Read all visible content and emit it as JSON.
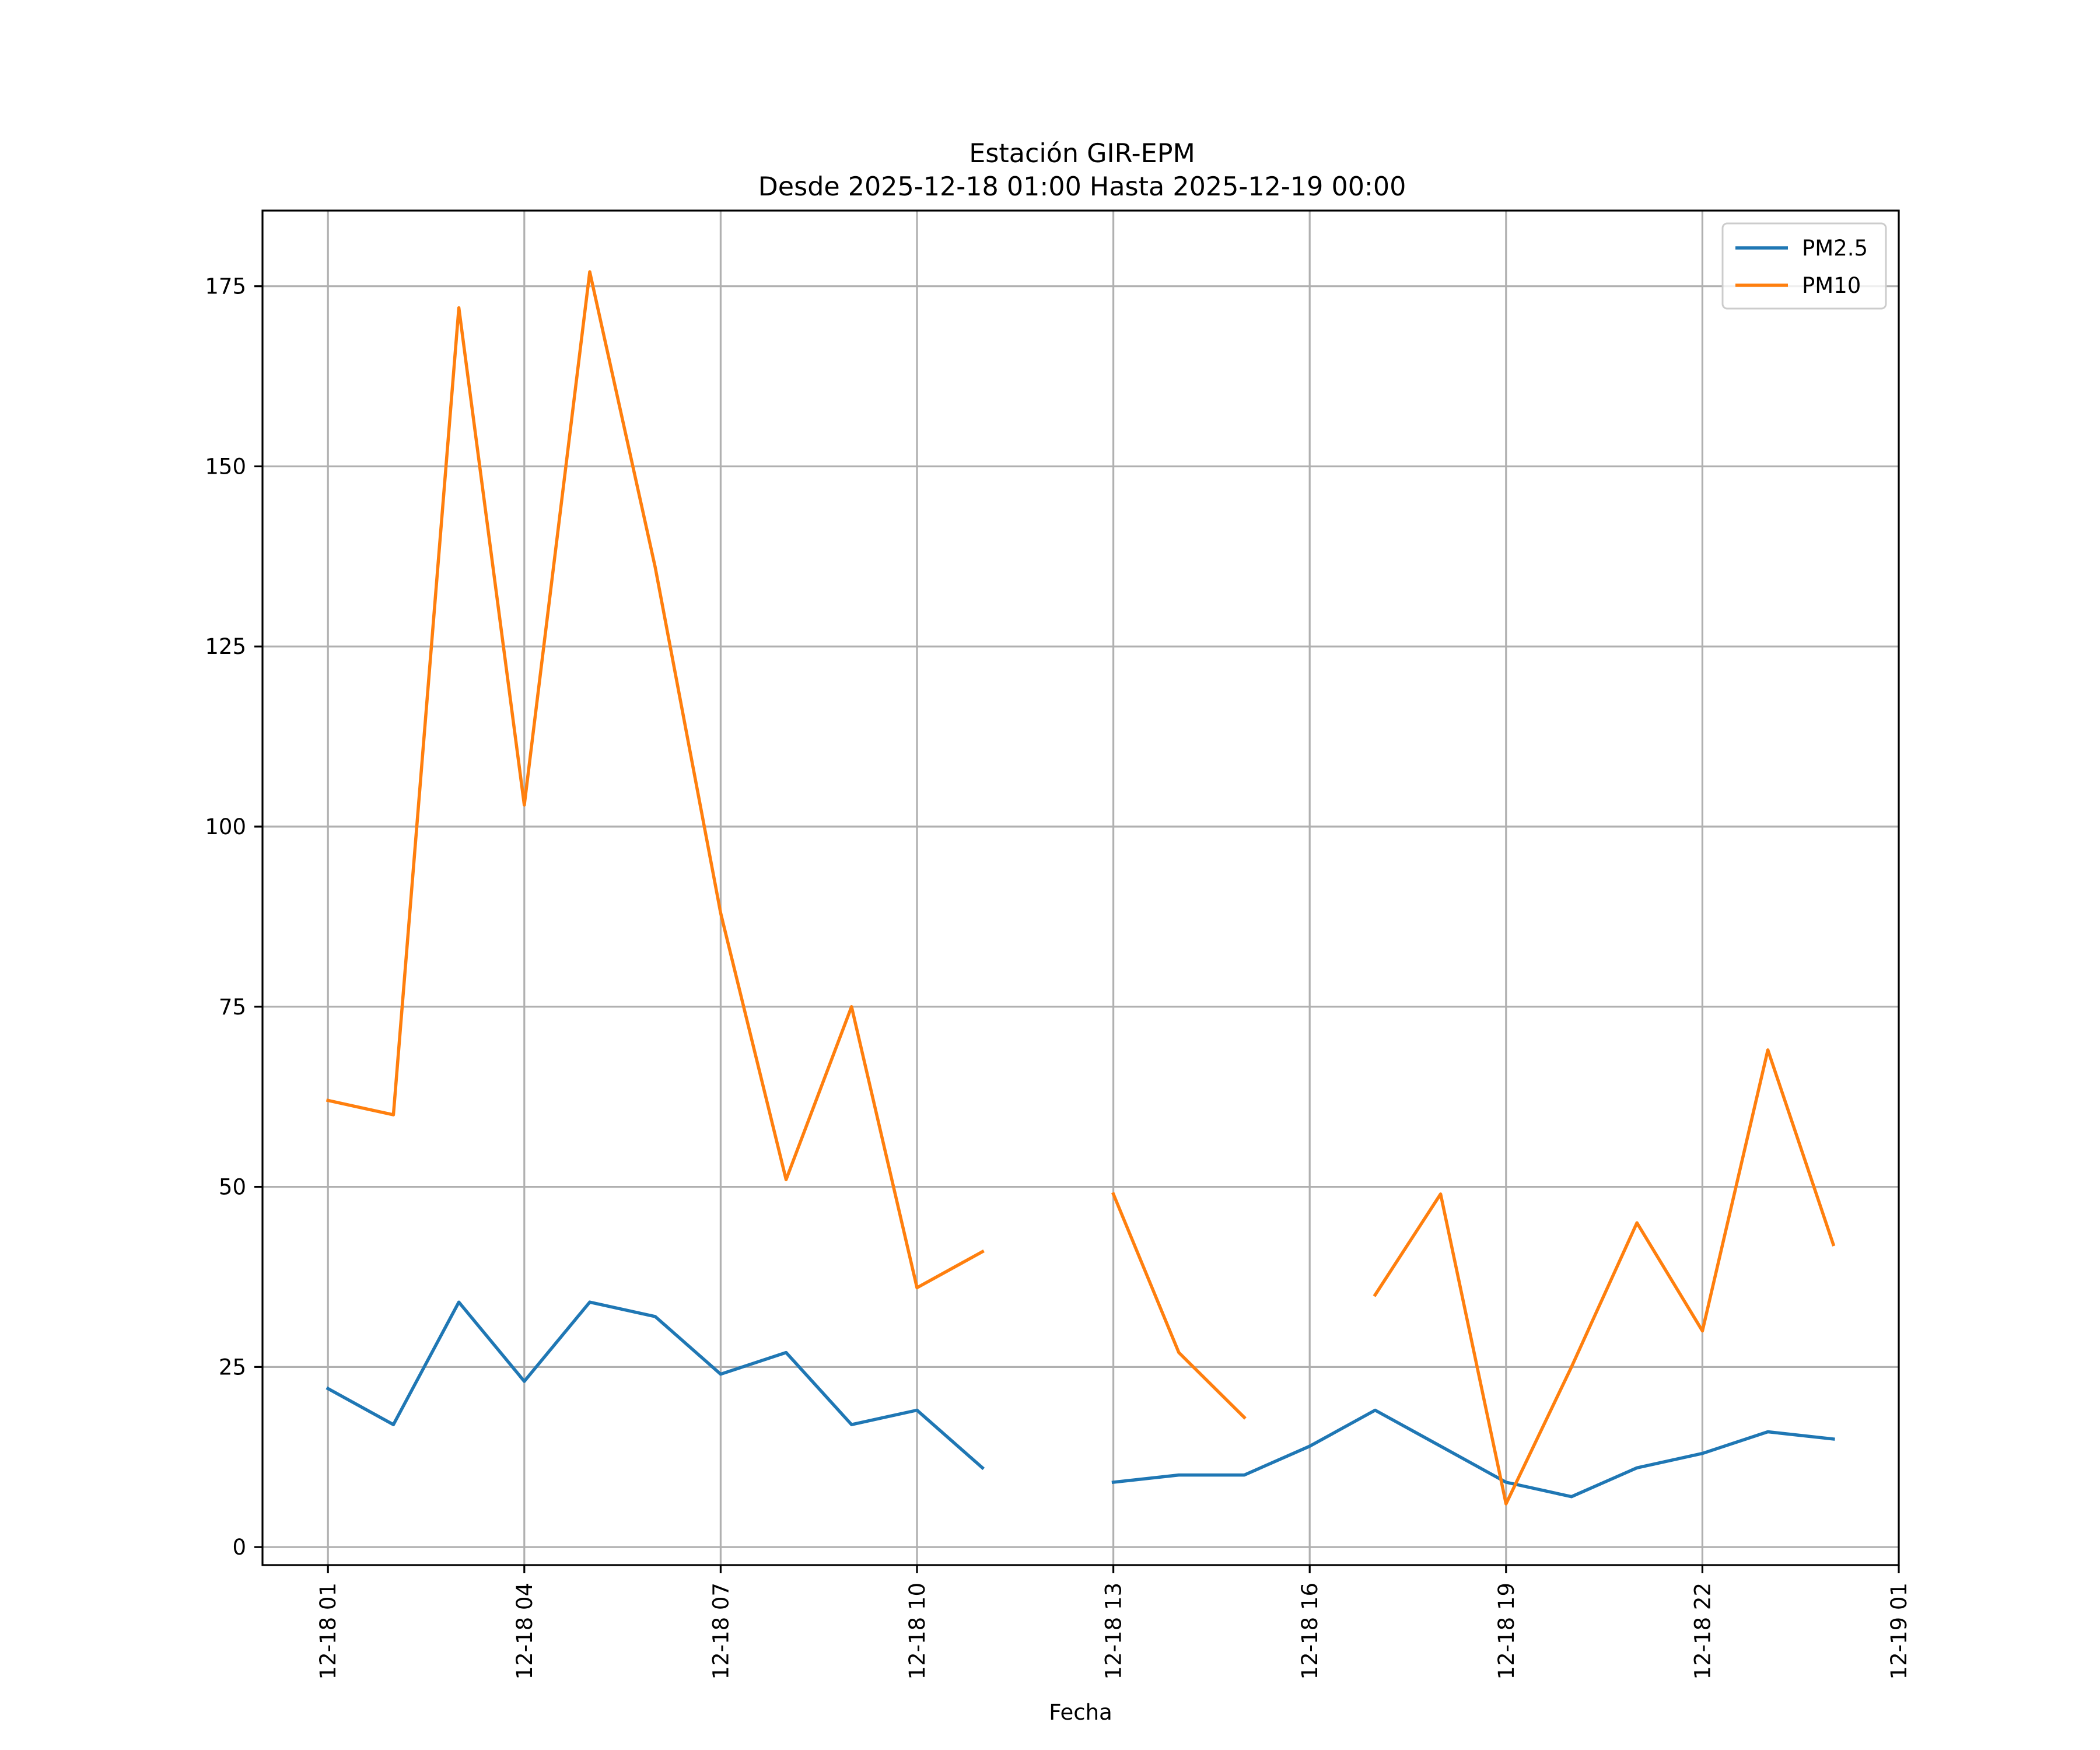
{
  "chart_data": {
    "type": "line",
    "title": "Estación GIR-EPM",
    "subtitle": "Desde 2025-12-18 01:00 Hasta 2025-12-19 00:00",
    "xlabel": "Fecha",
    "ylabel": "",
    "x_ticks": [
      "12-18 01",
      "12-18 04",
      "12-18 07",
      "12-18 10",
      "12-18 13",
      "12-18 16",
      "12-18 19",
      "12-18 22",
      "12-19 01"
    ],
    "y_ticks": [
      "0",
      "25",
      "50",
      "75",
      "100",
      "125",
      "150",
      "175"
    ],
    "x": [
      "2025-12-18 01:00",
      "2025-12-18 02:00",
      "2025-12-18 03:00",
      "2025-12-18 04:00",
      "2025-12-18 05:00",
      "2025-12-18 06:00",
      "2025-12-18 07:00",
      "2025-12-18 08:00",
      "2025-12-18 09:00",
      "2025-12-18 10:00",
      "2025-12-18 11:00",
      "2025-12-18 12:00",
      "2025-12-18 13:00",
      "2025-12-18 14:00",
      "2025-12-18 15:00",
      "2025-12-18 16:00",
      "2025-12-18 17:00",
      "2025-12-18 18:00",
      "2025-12-18 19:00",
      "2025-12-18 20:00",
      "2025-12-18 21:00",
      "2025-12-18 22:00",
      "2025-12-18 23:00",
      "2025-12-19 00:00"
    ],
    "series": [
      {
        "name": "PM2.5",
        "color": "#1f77b4",
        "values": [
          22,
          17,
          34,
          23,
          34,
          32,
          24,
          27,
          17,
          19,
          11,
          null,
          9,
          10,
          10,
          14,
          19,
          14,
          9,
          7,
          11,
          13,
          16,
          15
        ]
      },
      {
        "name": "PM10",
        "color": "#ff7f0e",
        "values": [
          62,
          60,
          172,
          103,
          177,
          136,
          88,
          51,
          75,
          36,
          41,
          null,
          49,
          27,
          18,
          null,
          35,
          49,
          6,
          25,
          45,
          30,
          69,
          42
        ]
      }
    ],
    "xlim": [
      "2025-12-18 00:00",
      "2025-12-19 01:00"
    ],
    "ylim": [
      -2.5,
      185.5
    ],
    "grid": true,
    "legend_position": "upper right"
  }
}
